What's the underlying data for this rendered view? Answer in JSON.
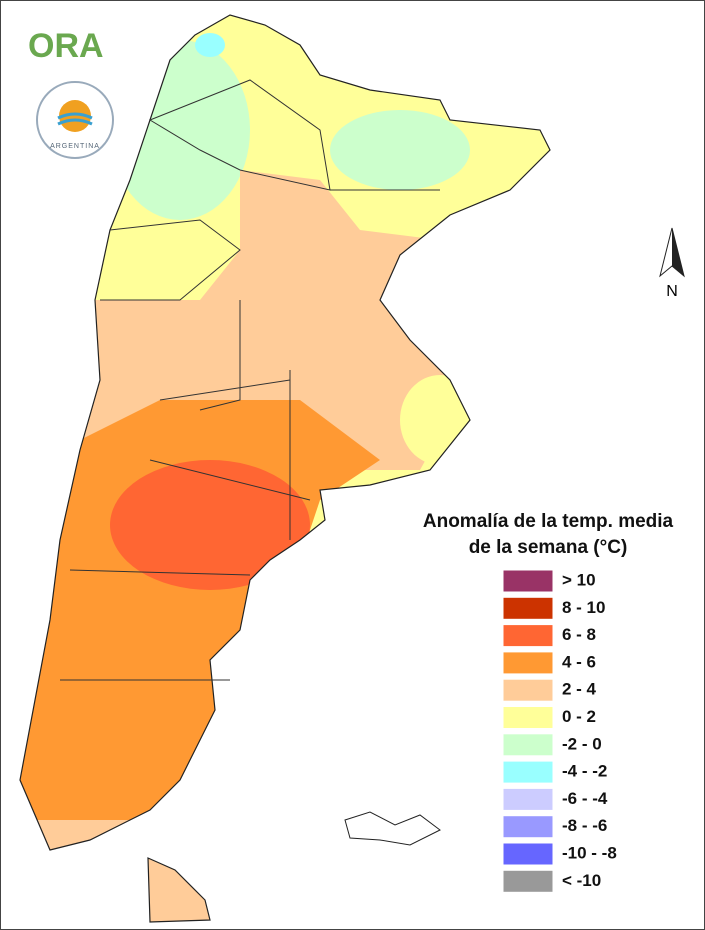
{
  "logo": {
    "text": "ORA",
    "emblem_text": "ARGENTINA"
  },
  "north_arrow": "N",
  "legend": {
    "title_lines": [
      "Anomalía de la temp. media",
      "de la semana (°C)"
    ],
    "items": [
      {
        "label": "> 10",
        "color": "#993366"
      },
      {
        "label": "8 - 10",
        "color": "#cc3300"
      },
      {
        "label": "6 - 8",
        "color": "#ff6633"
      },
      {
        "label": "4 - 6",
        "color": "#ff9933"
      },
      {
        "label": "2 - 4",
        "color": "#ffcc99"
      },
      {
        "label": "0 - 2",
        "color": "#ffff99"
      },
      {
        "label": "-2 - 0",
        "color": "#ccffcc"
      },
      {
        "label": "-4 - -2",
        "color": "#99ffff"
      },
      {
        "label": "-6 - -4",
        "color": "#ccccff"
      },
      {
        "label": "-8 - -6",
        "color": "#9999ff"
      },
      {
        "label": "-10 - -8",
        "color": "#6666ff"
      },
      {
        "label": "< -10",
        "color": "#999999"
      }
    ]
  }
}
